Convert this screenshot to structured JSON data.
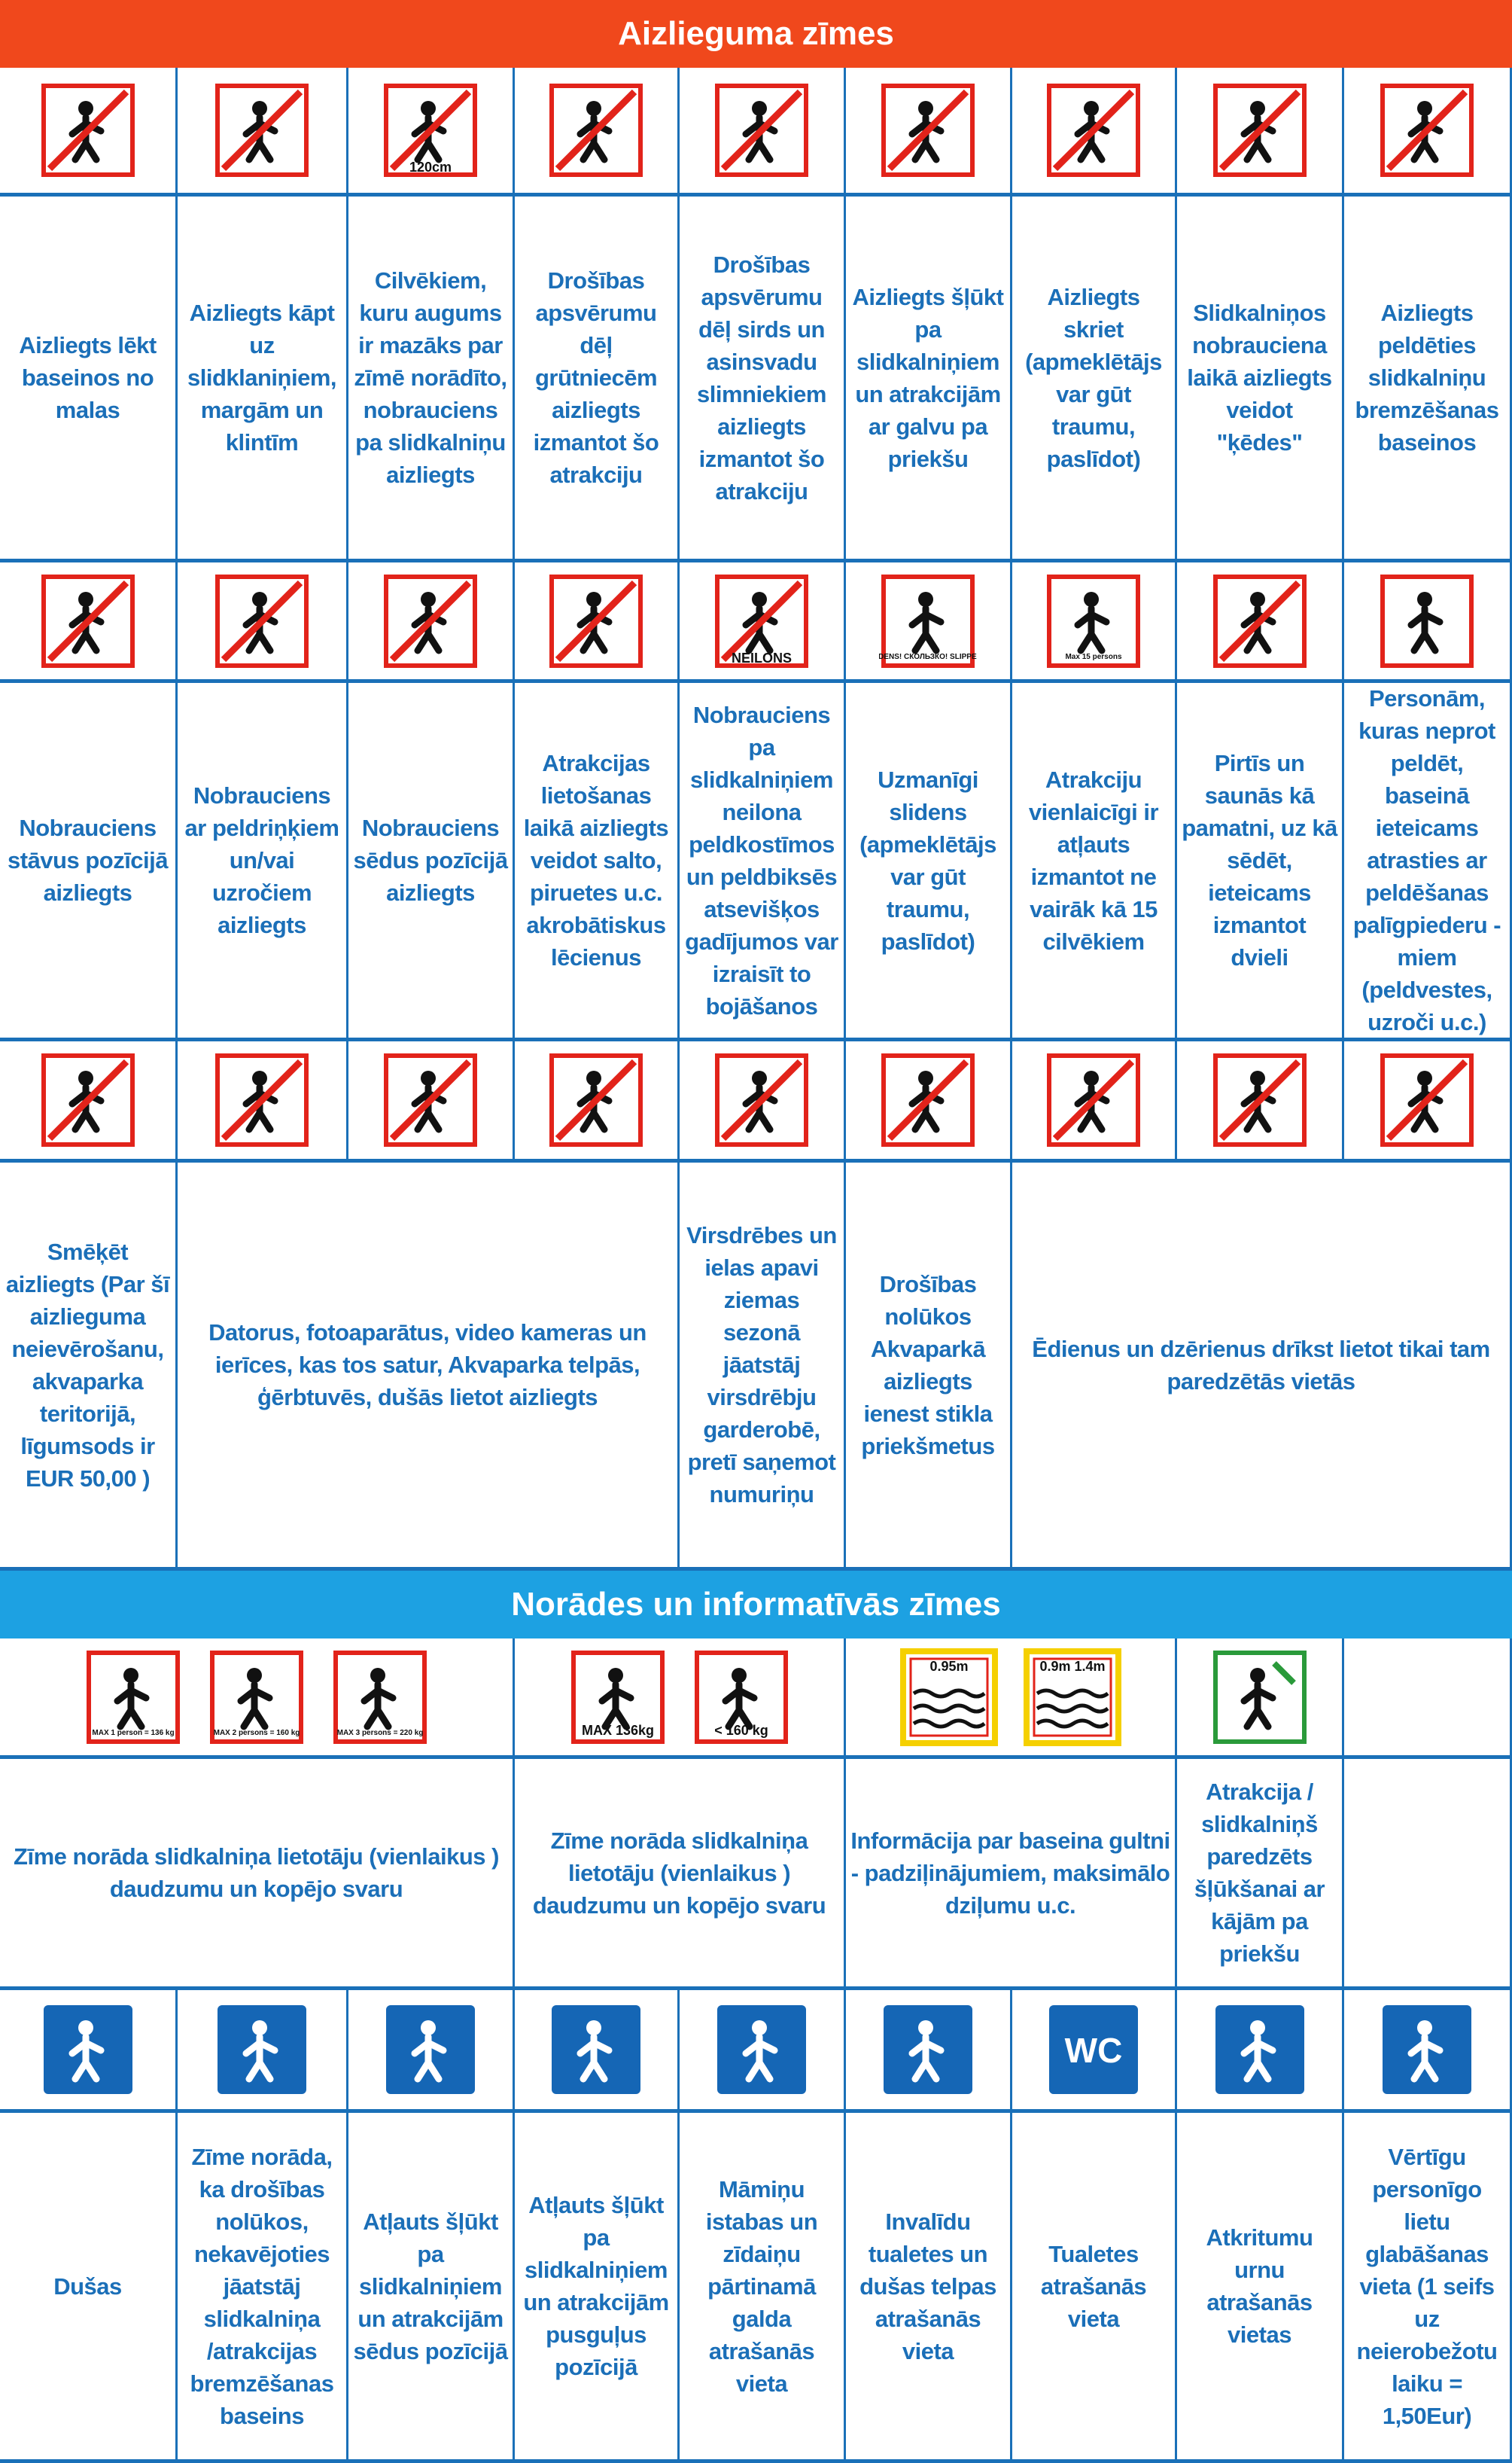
{
  "colors": {
    "prohibition_bar": "#f0481c",
    "info_bar": "#1da1e2",
    "text": "#1b6fb8",
    "grid": "#1a70b8",
    "sign_red": "#e2231a",
    "sign_blue": "#1566b5"
  },
  "section1": {
    "title": "Aizlieguma zīmes"
  },
  "section2": {
    "title": "Norādes un informatīvās zīmes"
  },
  "rows": [
    {
      "icons": [
        {
          "name": "no-diving-icon",
          "style": "no"
        },
        {
          "name": "no-climbing-icon",
          "style": "no"
        },
        {
          "name": "height-limit-icon",
          "style": "no",
          "text": "120cm"
        },
        {
          "name": "no-pregnant-icon",
          "style": "no"
        },
        {
          "name": "no-heart-patients-icon",
          "style": "no"
        },
        {
          "name": "no-headfirst-icon",
          "style": "no"
        },
        {
          "name": "no-running-icon",
          "style": "no"
        },
        {
          "name": "no-chains-icon",
          "style": "no"
        },
        {
          "name": "no-swimming-icon",
          "style": "no"
        }
      ],
      "texts": [
        "Aizliegts lēkt baseinos no malas",
        "Aizliegts kāpt uz slidklaniņiem, margām un klintīm",
        "Cilvēkiem, kuru augums ir mazāks par zīmē norādīto, nobrauciens pa slidkalniņu aizliegts",
        "Drošības apsvērumu dēļ grūtniecēm aizliegts izmantot šo atrakciju",
        "Drošības apsvērumu dēļ sirds un asinsvadu slimniekiem aizliegts izmantot šo atrakciju",
        "Aizliegts šļūkt pa slidkalniņiem un atrakcijām ar galvu pa priekšu",
        "Aizliegts skriet (apmeklētājs var gūt traumu, paslīdot)",
        "Slidkalniņos nobrauciena laikā aizliegts veidot \"ķēdes\"",
        "Aizliegts peldēties slidkalniņu bremzēšanas baseinos"
      ]
    },
    {
      "icons": [
        {
          "name": "no-standing-slide-icon",
          "style": "no"
        },
        {
          "name": "no-float-rings-icon",
          "style": "no"
        },
        {
          "name": "no-sitting-icon",
          "style": "no"
        },
        {
          "name": "no-acrobatics-icon",
          "style": "no"
        },
        {
          "name": "no-nylon-icon",
          "style": "no",
          "text": "NEILONS"
        },
        {
          "name": "slippery-icon",
          "style": "warn",
          "text": "SLIDENS! СКОЛЬЗКО! SLIPPERY!"
        },
        {
          "name": "max-persons-icon",
          "style": "warn",
          "text": "Max 15 persons"
        },
        {
          "name": "sauna-towel-icon",
          "style": "no"
        },
        {
          "name": "swim-aids-icon",
          "style": "warn"
        }
      ],
      "texts": [
        "Nobrauciens stāvus pozīcijā aizliegts",
        "Nobrauciens ar peldriņķiem un/vai uzročiem aizliegts",
        "Nobrauciens sēdus pozīcijā aizliegts",
        "Atrakcijas lietošanas laikā aizliegts veidot salto, piruetes u.c. akrobātiskus lēcienus",
        "Nobrauciens pa slidkalniņiem neilona peldkostīmos un peldbiksēs atsevišķos gadījumos var izraisīt to bojāšanos",
        "Uzmanīgi slidens (apmeklētājs var gūt traumu, paslīdot)",
        "Atrakciju vienlaicīgi ir atļauts izmantot ne vairāk kā 15 cilvēkiem",
        "Pirtīs un saunās kā pamatni, uz kā sēdēt, ieteicams izmantot dvieli",
        "Personām, kuras neprot peldēt, baseinā ieteicams atrasties ar peldēšanas palīgpiederu - miem (peldvestes, uzroči u.c.)"
      ]
    },
    {
      "icons": [
        {
          "name": "no-smoking-icon",
          "style": "no"
        },
        {
          "name": "no-camera-icon",
          "style": "no"
        },
        {
          "name": "no-video-camera-icon",
          "style": "no"
        },
        {
          "name": "no-phone-icon",
          "style": "no"
        },
        {
          "name": "no-shoes-icon",
          "style": "no"
        },
        {
          "name": "no-glass-icon",
          "style": "no"
        },
        {
          "name": "no-food-icon",
          "style": "no"
        },
        {
          "name": "no-ice-cream-drinks-icon",
          "style": "no"
        },
        {
          "name": "no-alcohol-icon",
          "style": "no"
        }
      ],
      "texts": [
        "Smēķēt aizliegts (Par šī aizlieguma neievērošanu, akvaparka teritorijā, līgumsods ir EUR 50,00 )",
        "Datorus, fotoaparātus, video kameras un ierīces, kas tos satur, Akvaparka telpās, ģērbtuvēs, dušās lietot aizliegts",
        "Virsdrēbes un ielas apavi ziemas sezonā jāatstāj virsdrēbju garderobē, pretī saņemot numuriņu",
        "Drošības nolūkos Akvaparkā aizliegts ienest stikla priekšmetus",
        "Ēdienus un dzērienus drīkst lietot tikai tam paredzētās vietās"
      ]
    },
    {
      "icons": [
        {
          "name": "raft-1-person-icon",
          "style": "warn",
          "text": "MAX 1 person = 136 kg"
        },
        {
          "name": "raft-2-persons-icon",
          "style": "warn",
          "text": "MAX 2 persons = 160 kg"
        },
        {
          "name": "raft-3-persons-icon",
          "style": "warn",
          "text": "MAX 3 persons = 220 kg"
        },
        {
          "name": "max-weight-1-icon",
          "style": "warn",
          "text": "MAX 136kg"
        },
        {
          "name": "max-weight-2-icon",
          "style": "warn",
          "text": "< 160 kg"
        },
        {
          "name": "depth-095-icon",
          "style": "depth",
          "text": "0.95m"
        },
        {
          "name": "depth-09-14-icon",
          "style": "depth",
          "text": "0.9m 1.4m"
        },
        {
          "name": "feet-first-slide-icon",
          "style": "green"
        }
      ],
      "texts": [
        "Zīme norāda slidkalniņa lietotāju (vienlaikus ) daudzumu un kopējo svaru",
        "Zīme norāda slidkalniņa lietotāju (vienlaikus ) daudzumu un kopējo svaru",
        "Informācija par baseina gultni - padziļinājumiem, maksimālo dziļumu u.c.",
        "Atrakcija / slidkalniņš paredzēts šļūkšanai ar kājām pa priekšu",
        ""
      ]
    },
    {
      "icons": [
        {
          "name": "shower-icon",
          "style": "info"
        },
        {
          "name": "brake-pool-icon",
          "style": "info"
        },
        {
          "name": "sitting-slide-icon",
          "style": "info"
        },
        {
          "name": "half-lying-slide-icon",
          "style": "info"
        },
        {
          "name": "baby-changing-icon",
          "style": "info"
        },
        {
          "name": "wheelchair-icon",
          "style": "info"
        },
        {
          "name": "wc-icon",
          "style": "info",
          "text": "WC"
        },
        {
          "name": "trash-bin-icon",
          "style": "info"
        },
        {
          "name": "safe-icon",
          "style": "info"
        }
      ],
      "texts": [
        "Dušas",
        "Zīme norāda, ka drošības nolūkos, nekavējoties jāatstāj slidkalniņa /atrakcijas bremzēšanas baseins",
        "Atļauts šļūkt pa slidkalniņiem un atrakcijām sēdus pozīcijā",
        "Atļauts šļūkt pa slidkalniņiem un atrakcijām pusguļus pozīcijā",
        "Māmiņu istabas un zīdaiņu pārtinamā galda atrašanās vieta",
        "Invalīdu tualetes un dušas telpas atrašanās vieta",
        "Tualetes atrašanās vieta",
        "Atkritumu urnu atrašanās vietas",
        "Vērtīgu personīgo lietu glabāšanas vieta (1 seifs uz neierobežotu laiku = 1,50Eur)"
      ]
    }
  ]
}
